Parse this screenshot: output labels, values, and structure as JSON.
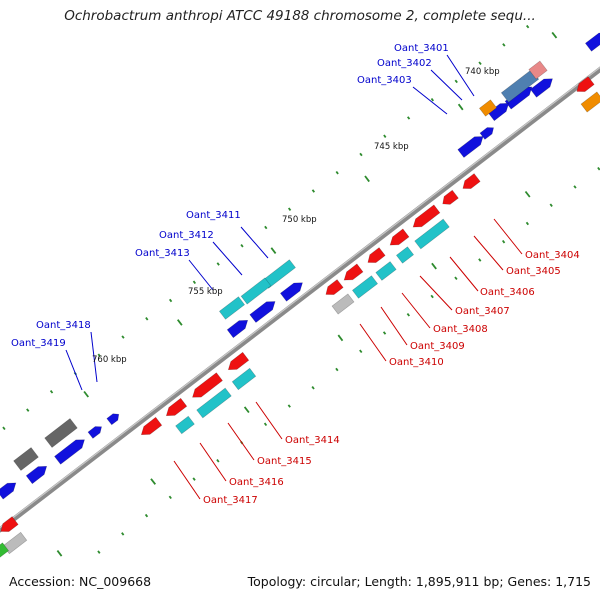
{
  "title": "Ochrobactrum anthropi ATCC 49188 chromosome 2, complete sequ...",
  "footer": {
    "accession": "Accession: NC_009668",
    "summary": "Topology: circular; Length: 1,895,911 bp; Genes: 1,715"
  },
  "colors": {
    "backbone": "#8a8a8a",
    "tick": "#2e8b2e",
    "label_blue": "#0000cc",
    "label_red": "#cc0000",
    "gene_red": "#ee1111",
    "gene_blue": "#1111dd",
    "gene_cyan": "#22c2c8",
    "gene_gray": "#666666",
    "gene_lightgray": "#bbbbbb",
    "gene_orange": "#f08c00",
    "gene_steelblue": "#4f7fb0",
    "gene_pink": "#e88888",
    "gene_green": "#33bb33"
  },
  "tick_labels": [
    {
      "text": "740 kbp",
      "kbp": 740
    },
    {
      "text": "745 kbp",
      "kbp": 745
    },
    {
      "text": "750 kbp",
      "kbp": 750
    },
    {
      "text": "755 kbp",
      "kbp": 755
    },
    {
      "text": "760 kbp",
      "kbp": 760
    }
  ],
  "gene_labels_top": [
    "Oant_3401",
    "Oant_3402",
    "Oant_3403",
    "Oant_3411",
    "Oant_3412",
    "Oant_3413",
    "Oant_3418",
    "Oant_3419"
  ],
  "gene_labels_bottom": [
    "Oant_3404",
    "Oant_3405",
    "Oant_3406",
    "Oant_3407",
    "Oant_3408",
    "Oant_3409",
    "Oant_3410",
    "Oant_3414",
    "Oant_3415",
    "Oant_3416",
    "Oant_3417"
  ]
}
